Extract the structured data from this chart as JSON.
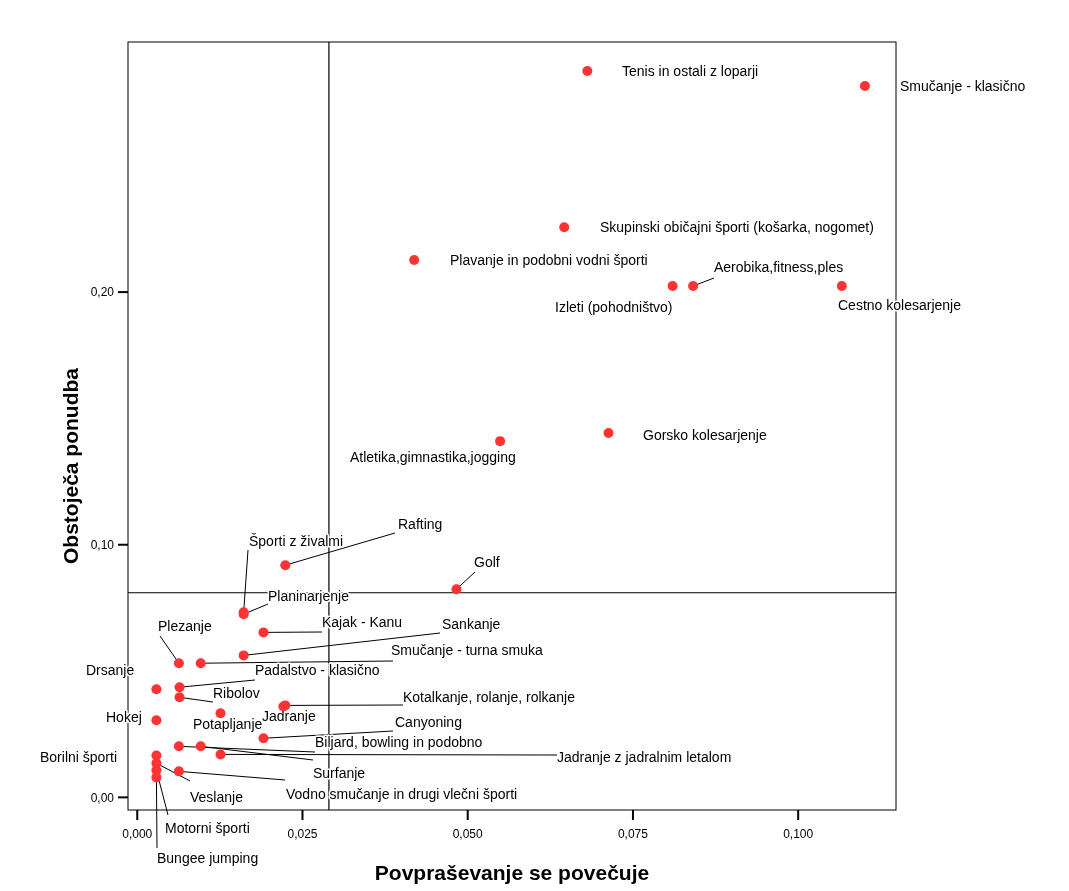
{
  "chart_data": {
    "type": "scatter",
    "xlabel": "Povpraševanje se povečuje",
    "ylabel": "Obstoječa ponudba",
    "xlim": [
      -0.0014,
      0.1148
    ],
    "ylim": [
      -0.005,
      0.299
    ],
    "xticks": [
      {
        "value": 0,
        "label": "0,000"
      },
      {
        "value": 0.025,
        "label": "0,025"
      },
      {
        "value": 0.05,
        "label": "0,050"
      },
      {
        "value": 0.075,
        "label": "0,075"
      },
      {
        "value": 0.1,
        "label": "0,100"
      }
    ],
    "yticks": [
      {
        "value": 0,
        "label": "0,00"
      },
      {
        "value": 0.1,
        "label": "0,10"
      },
      {
        "value": 0.2,
        "label": "0,20"
      }
    ],
    "grid": false,
    "marker": "circle",
    "ref_lines": [
      {
        "axis": "x",
        "value": 0.029
      },
      {
        "axis": "y",
        "value": 0.081
      }
    ],
    "series": [
      {
        "color": "#ff3333",
        "x": [
          0.0681,
          0.1101,
          0.0646,
          0.0419,
          0.081,
          0.0841,
          0.1066,
          0.0713,
          0.0549,
          0.0224,
          0.0161,
          0.0161,
          0.0483,
          0.0191,
          0.0161,
          0.0096,
          0.0063,
          0.0064,
          0.0064,
          0.0029,
          0.0224,
          0.0221,
          0.0126,
          0.0029,
          0.0191,
          0.0063,
          0.0096,
          0.0126,
          0.0063,
          0.0029,
          0.0029,
          0.0029,
          0.0029
        ],
        "values": [
          0.2875,
          0.2816,
          0.2257,
          0.2127,
          0.2024,
          0.2024,
          0.2024,
          0.1442,
          0.141,
          0.0919,
          0.0733,
          0.0725,
          0.0824,
          0.0653,
          0.0562,
          0.0531,
          0.0531,
          0.0436,
          0.0396,
          0.0428,
          0.0364,
          0.036,
          0.0333,
          0.0305,
          0.0234,
          0.0202,
          0.0202,
          0.017,
          0.0103,
          0.0166,
          0.0135,
          0.0107,
          0.0079
        ]
      }
    ],
    "annotations": [
      {
        "text": "Tenis in ostali z loparji",
        "x": 0.0681,
        "y": 0.2875
      },
      {
        "text": "Smučanje - klasično",
        "x": 0.1101,
        "y": 0.2816
      },
      {
        "text": "Skupinski običajni športi (košarka, nogomet)",
        "x": 0.0646,
        "y": 0.2257
      },
      {
        "text": "Plavanje in podobni vodni športi",
        "x": 0.0419,
        "y": 0.2127
      },
      {
        "text": "Izleti (pohodništvo)",
        "x": 0.081,
        "y": 0.2024
      },
      {
        "text": "Aerobika,fitness,ples",
        "x": 0.0841,
        "y": 0.2024
      },
      {
        "text": "Cestno kolesarjenje",
        "x": 0.1066,
        "y": 0.2024
      },
      {
        "text": "Gorsko kolesarjenje",
        "x": 0.0713,
        "y": 0.1442
      },
      {
        "text": "Atletika,gimnastika,jogging",
        "x": 0.0549,
        "y": 0.141
      },
      {
        "text": "Rafting",
        "x": 0.0224,
        "y": 0.0919
      },
      {
        "text": "Športi z živalmi",
        "x": 0.0161,
        "y": 0.0733
      },
      {
        "text": "Planinarjenje",
        "x": 0.0161,
        "y": 0.0725
      },
      {
        "text": "Golf",
        "x": 0.0483,
        "y": 0.0824
      },
      {
        "text": "Kajak - Kanu",
        "x": 0.0191,
        "y": 0.0653
      },
      {
        "text": "Sankanje",
        "x": 0.0161,
        "y": 0.0562
      },
      {
        "text": "Smučanje - turna smuka",
        "x": 0.0096,
        "y": 0.0531
      },
      {
        "text": "Plezanje",
        "x": 0.0063,
        "y": 0.0531
      },
      {
        "text": "Padalstvo - klasično",
        "x": 0.0064,
        "y": 0.0436
      },
      {
        "text": "Ribolov",
        "x": 0.0064,
        "y": 0.0396
      },
      {
        "text": "Drsanje",
        "x": 0.0029,
        "y": 0.0428
      },
      {
        "text": "Kotalkanje, rolanje, rolkanje",
        "x": 0.0224,
        "y": 0.0364
      },
      {
        "text": "Jadranje",
        "x": 0.0221,
        "y": 0.036
      },
      {
        "text": "Potapljanje",
        "x": 0.0126,
        "y": 0.0333
      },
      {
        "text": "Hokej",
        "x": 0.0029,
        "y": 0.0305
      },
      {
        "text": "Canyoning",
        "x": 0.0191,
        "y": 0.0234
      },
      {
        "text": "Biljard, bowling in podobno",
        "x": 0.0063,
        "y": 0.0202
      },
      {
        "text": "Surfanje",
        "x": 0.0096,
        "y": 0.0202
      },
      {
        "text": "Jadranje z jadralnim letalom",
        "x": 0.0126,
        "y": 0.017
      },
      {
        "text": "Vodno smučanje in drugi vlečni športi",
        "x": 0.0063,
        "y": 0.0103
      },
      {
        "text": "Borilni športi",
        "x": 0.0029,
        "y": 0.0166
      },
      {
        "text": "Veslanje",
        "x": 0.0029,
        "y": 0.0135
      },
      {
        "text": "Motorni športi",
        "x": 0.0029,
        "y": 0.0107
      },
      {
        "text": "Bungee jumping",
        "x": 0.0029,
        "y": 0.0079
      }
    ]
  }
}
